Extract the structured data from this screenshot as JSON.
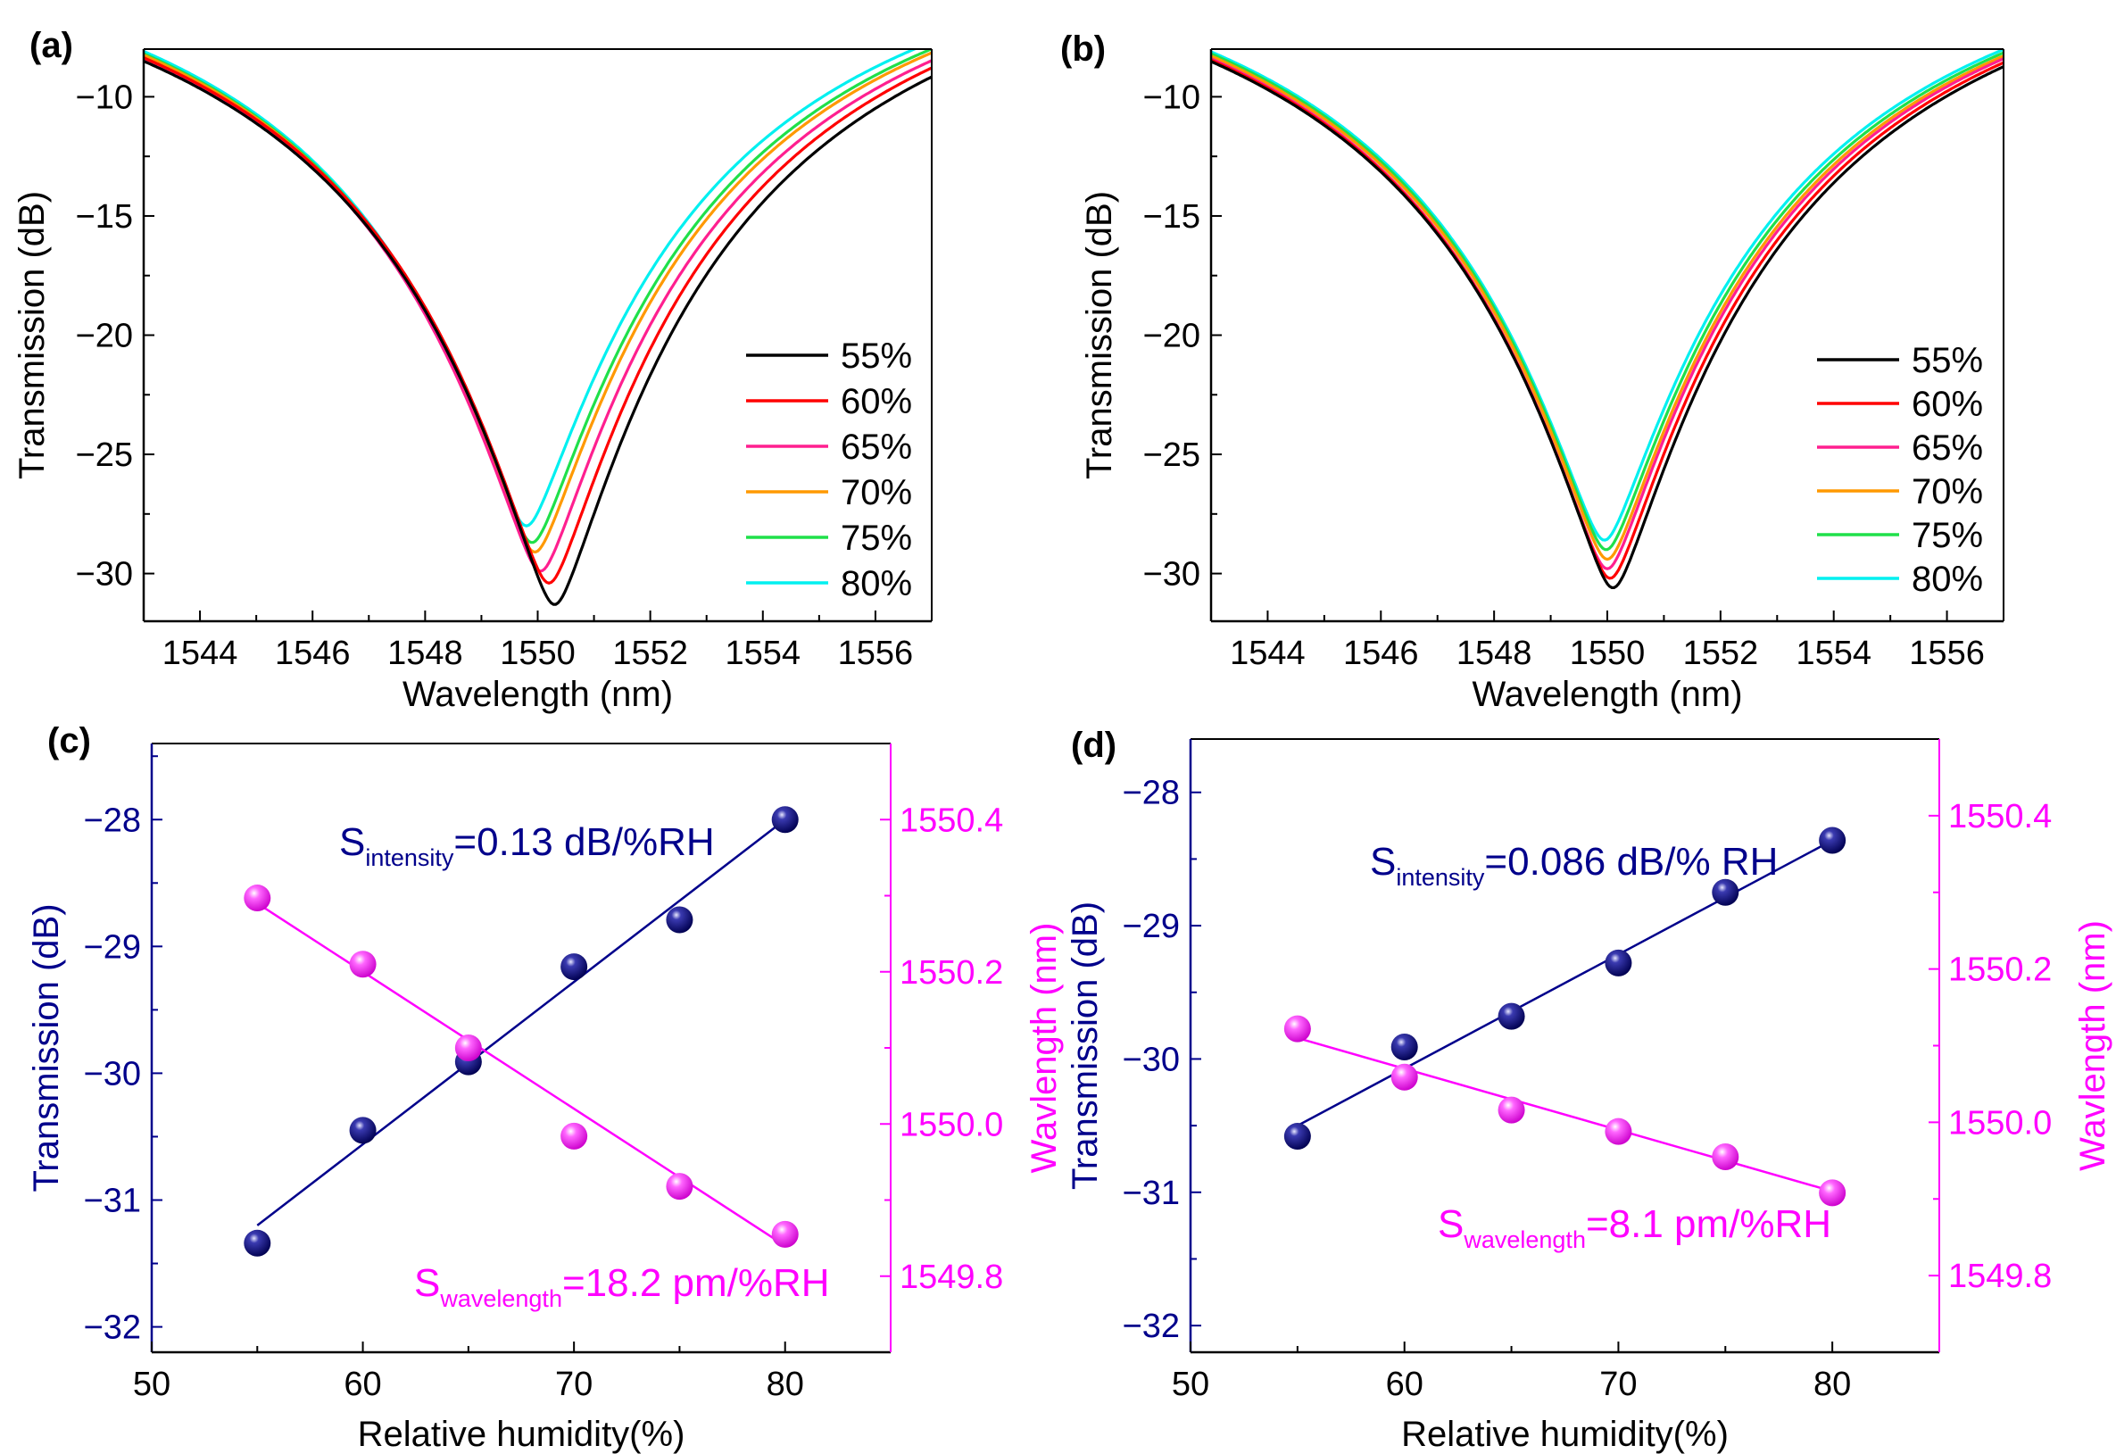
{
  "chart_data": [
    {
      "panel_label": "(a)",
      "type": "line",
      "xlabel": "Wavelength (nm)",
      "ylabel": "Transmission (dB)",
      "xlim": [
        1543,
        1557
      ],
      "ylim": [
        -32,
        -8
      ],
      "xticks": [
        1544,
        1546,
        1548,
        1550,
        1552,
        1554,
        1556
      ],
      "xtick_labels": [
        "1544",
        "1546",
        "1548",
        "1550",
        "1552",
        "1554",
        "1556"
      ],
      "yticks": [
        -30,
        -25,
        -20,
        -15,
        -10
      ],
      "ytick_labels": [
        "−30",
        "−25",
        "−20",
        "−15",
        "−10"
      ],
      "legend_position": "right",
      "series": [
        {
          "name": "55%",
          "color": "#000000",
          "dip_wavelength": 1550.3,
          "dip_transmission": -31.3
        },
        {
          "name": "60%",
          "color": "#ff0000",
          "dip_wavelength": 1550.2,
          "dip_transmission": -30.4
        },
        {
          "name": "65%",
          "color": "#ff1f8f",
          "dip_wavelength": 1550.05,
          "dip_transmission": -29.9
        },
        {
          "name": "70%",
          "color": "#ff9900",
          "dip_wavelength": 1549.95,
          "dip_transmission": -29.1
        },
        {
          "name": "75%",
          "color": "#1fe04a",
          "dip_wavelength": 1549.9,
          "dip_transmission": -28.7
        },
        {
          "name": "80%",
          "color": "#00f0f0",
          "dip_wavelength": 1549.8,
          "dip_transmission": -28.0
        }
      ]
    },
    {
      "panel_label": "(b)",
      "type": "line",
      "xlabel": "Wavelength (nm)",
      "ylabel": "Transmission (dB)",
      "xlim": [
        1543,
        1557
      ],
      "ylim": [
        -32,
        -8
      ],
      "xticks": [
        1544,
        1546,
        1548,
        1550,
        1552,
        1554,
        1556
      ],
      "xtick_labels": [
        "1544",
        "1546",
        "1548",
        "1550",
        "1552",
        "1554",
        "1556"
      ],
      "yticks": [
        -30,
        -25,
        -20,
        -15,
        -10
      ],
      "ytick_labels": [
        "−30",
        "−25",
        "−20",
        "−15",
        "−10"
      ],
      "legend_position": "right",
      "series": [
        {
          "name": "55%",
          "color": "#000000",
          "dip_wavelength": 1550.1,
          "dip_transmission": -30.6
        },
        {
          "name": "60%",
          "color": "#ff0000",
          "dip_wavelength": 1550.05,
          "dip_transmission": -30.2
        },
        {
          "name": "65%",
          "color": "#ff1f8f",
          "dip_wavelength": 1550.0,
          "dip_transmission": -29.8
        },
        {
          "name": "70%",
          "color": "#ff9900",
          "dip_wavelength": 1550.0,
          "dip_transmission": -29.4
        },
        {
          "name": "75%",
          "color": "#1fe04a",
          "dip_wavelength": 1549.98,
          "dip_transmission": -29.0
        },
        {
          "name": "80%",
          "color": "#00f0f0",
          "dip_wavelength": 1549.95,
          "dip_transmission": -28.6
        }
      ]
    },
    {
      "panel_label": "(c)",
      "type": "scatter",
      "xlabel": "Relative humidity(%)",
      "ylabel": "Transmission (dB)",
      "y2label": "Wavlength (nm)",
      "xlim": [
        50,
        85
      ],
      "ylim": [
        -32.2,
        -27.4
      ],
      "y2lim": [
        1549.7,
        1550.5
      ],
      "xticks": [
        50,
        60,
        70,
        80
      ],
      "xtick_labels": [
        "50",
        "60",
        "70",
        "80"
      ],
      "yticks": [
        -32,
        -31,
        -30,
        -29,
        -28
      ],
      "ytick_labels": [
        "−32",
        "−31",
        "−30",
        "−29",
        "−28"
      ],
      "y2ticks": [
        1549.8,
        1550.0,
        1550.2,
        1550.4
      ],
      "y2tick_labels": [
        "1549.8",
        "1550.0",
        "1550.2",
        "1550.4"
      ],
      "left_color": "#00008b",
      "right_color": "#ff00ff",
      "x": [
        55,
        60,
        65,
        70,
        75,
        80
      ],
      "series": [
        {
          "name": "Transmission",
          "axis": "left",
          "values": [
            -31.34,
            -30.45,
            -29.91,
            -29.16,
            -28.79,
            -28.0
          ],
          "fit": [
            [
              55,
              -31.2
            ],
            [
              80,
              -28.0
            ]
          ]
        },
        {
          "name": "Wavelength",
          "axis": "right",
          "values": [
            1550.297,
            1550.21,
            1550.1,
            1549.984,
            1549.918,
            1549.855
          ],
          "fit": [
            [
              55,
              1550.29
            ],
            [
              80,
              1549.84
            ]
          ]
        }
      ],
      "annotations": {
        "intensity": {
          "s": "S",
          "sub": "intensity",
          "text": "=0.13 dB/%RH"
        },
        "wavelength": {
          "s": "S",
          "sub": "wavelength",
          "text": "=18.2 pm/%RH"
        }
      }
    },
    {
      "panel_label": "(d)",
      "type": "scatter",
      "xlabel": "Relative humidity(%)",
      "ylabel": "Transmission (dB)",
      "y2label": "Wavlength (nm)",
      "xlim": [
        50,
        85
      ],
      "ylim": [
        -32.2,
        -27.6
      ],
      "y2lim": [
        1549.7,
        1550.5
      ],
      "xticks": [
        50,
        60,
        70,
        80
      ],
      "xtick_labels": [
        "50",
        "60",
        "70",
        "80"
      ],
      "yticks": [
        -32,
        -31,
        -30,
        -29,
        -28
      ],
      "ytick_labels": [
        "−32",
        "−31",
        "−30",
        "−29",
        "−28"
      ],
      "y2ticks": [
        1549.8,
        1550.0,
        1550.2,
        1550.4
      ],
      "y2tick_labels": [
        "1549.8",
        "1550.0",
        "1550.2",
        "1550.4"
      ],
      "left_color": "#00008b",
      "right_color": "#ff00ff",
      "x": [
        55,
        60,
        65,
        70,
        75,
        80
      ],
      "series": [
        {
          "name": "Transmission",
          "axis": "left",
          "values": [
            -30.58,
            -29.91,
            -29.68,
            -29.28,
            -28.75,
            -28.36
          ],
          "fit": [
            [
              55,
              -30.5
            ],
            [
              80,
              -28.36
            ]
          ]
        },
        {
          "name": "Wavelength",
          "axis": "right",
          "values": [
            1550.122,
            1550.059,
            1550.016,
            1549.988,
            1549.955,
            1549.908
          ],
          "fit": [
            [
              55,
              1550.11
            ],
            [
              80,
              1549.91
            ]
          ]
        }
      ],
      "annotations": {
        "intensity": {
          "s": "S",
          "sub": "intensity",
          "text": "=0.086 dB/% RH"
        },
        "wavelength": {
          "s": "S",
          "sub": "wavelength",
          "text": "=8.1 pm/%RH"
        }
      }
    }
  ]
}
